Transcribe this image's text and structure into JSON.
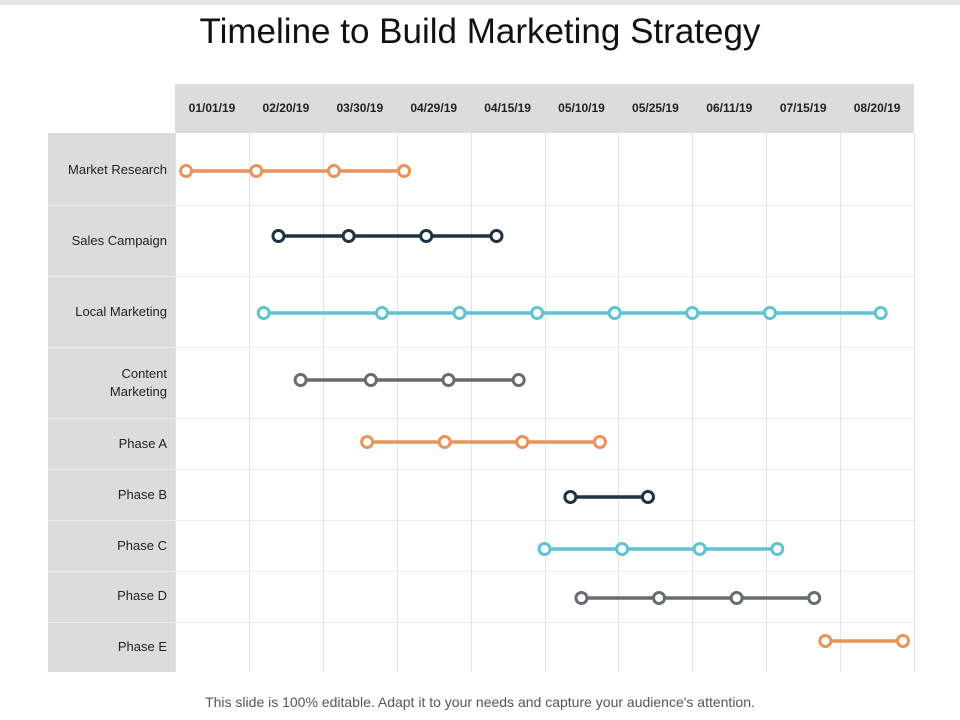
{
  "slide": {
    "title": "Timeline to Build Marketing Strategy",
    "footer": "This slide is 100% editable. Adapt it to your needs and capture your audience's attention."
  },
  "colors": {
    "orange": "#e8935a",
    "navy": "#1c3342",
    "teal": "#5fc4cf",
    "gray": "#666d72"
  },
  "dates": [
    "01/01/19",
    "02/20/19",
    "03/30/19",
    "04/29/19",
    "04/15/19",
    "05/10/19",
    "05/25/19",
    "06/11/19",
    "07/15/19",
    "08/20/19"
  ],
  "rows": [
    {
      "label": "Market Research",
      "color": "orange",
      "points": [
        0.15,
        1.1,
        2.15,
        3.1
      ]
    },
    {
      "label": "Sales Campaign",
      "color": "navy",
      "points": [
        1.4,
        2.35,
        3.4,
        4.35
      ]
    },
    {
      "label": "Local Marketing",
      "color": "teal",
      "points": [
        1.2,
        2.8,
        3.85,
        4.9,
        5.95,
        7.0,
        8.05,
        9.55
      ]
    },
    {
      "label": "Content\nMarketing",
      "color": "gray",
      "points": [
        1.7,
        2.65,
        3.7,
        4.65
      ]
    },
    {
      "label": "Phase A",
      "color": "orange",
      "points": [
        2.6,
        3.65,
        4.7,
        5.75
      ]
    },
    {
      "label": "Phase B",
      "color": "navy",
      "points": [
        5.35,
        6.4
      ]
    },
    {
      "label": "Phase C",
      "color": "teal",
      "points": [
        5.0,
        6.05,
        7.1,
        8.15
      ]
    },
    {
      "label": "Phase D",
      "color": "gray",
      "points": [
        5.5,
        6.55,
        7.6,
        8.65
      ]
    },
    {
      "label": "Phase E",
      "color": "orange",
      "points": [
        8.8,
        9.85
      ]
    }
  ]
}
